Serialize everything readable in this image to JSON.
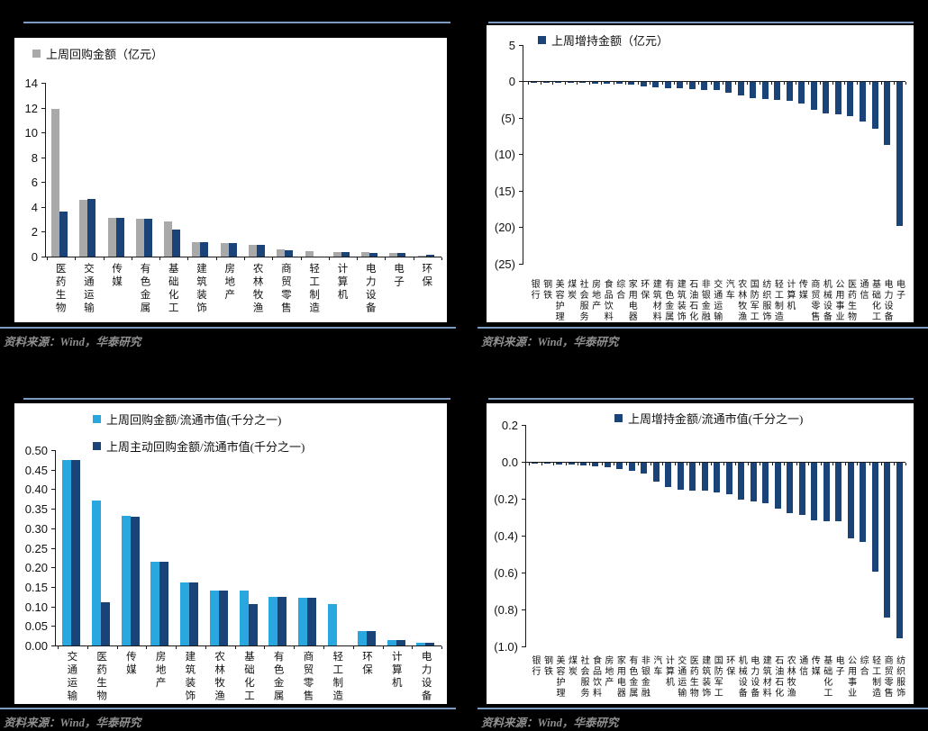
{
  "colors": {
    "page_background": "#000000",
    "panel_background": "#ffffff",
    "divider_line": "#7d9bc1",
    "gray_bar": "#a9a9a9",
    "navy_bar": "#1a4378",
    "light_blue_bar": "#29a8e0",
    "axis_color": "#1a1a1a",
    "source_text": "#8f8f8f"
  },
  "source_note": {
    "text": "资料来源：Wind，华泰研究"
  },
  "chart_data": [
    {
      "id": "weekly-repurchase-amount",
      "type": "bar",
      "legend": [
        {
          "label": "上周回购金额（亿元）",
          "color": "#a9a9a9"
        }
      ],
      "categories": [
        "医药生物",
        "交通运输",
        "传媒",
        "有色金属",
        "基础化工",
        "建筑装饰",
        "房地产",
        "农林牧渔",
        "商贸零售",
        "轻工制造",
        "计算机",
        "电力设备",
        "电子",
        "环保"
      ],
      "series": [
        {
          "color": "#a9a9a9",
          "values": [
            11.9,
            4.6,
            3.15,
            3.05,
            2.85,
            1.15,
            1.1,
            0.95,
            0.55,
            0.45,
            0.33,
            0.35,
            0.27,
            0.1
          ]
        },
        {
          "color": "#1a4378",
          "values": [
            3.6,
            4.65,
            3.13,
            3.05,
            2.15,
            1.15,
            1.1,
            0.95,
            0.53,
            0,
            0.37,
            0.3,
            0.29,
            0.13
          ]
        }
      ],
      "y_ticks": {
        "labels": [
          "14",
          "12",
          "10",
          "8",
          "6",
          "4",
          "2",
          "0"
        ],
        "values": [
          14,
          12,
          10,
          8,
          6,
          4,
          2,
          0
        ]
      },
      "ylim": [
        0,
        14
      ],
      "grid": false,
      "legend_position": "top-left"
    },
    {
      "id": "weekly-holding-increase-amount",
      "type": "bar",
      "legend": [
        {
          "label": "上周增持金额（亿元）",
          "color": "#1a4378"
        }
      ],
      "categories": [
        "银行",
        "钢铁",
        "美容护理",
        "煤炭",
        "社会服务",
        "房地产",
        "食品饮料",
        "综合",
        "家用电器",
        "环保",
        "建筑材料",
        "有色金属",
        "建筑装饰",
        "石油石化",
        "非银金融",
        "交通运输",
        "汽车",
        "农林牧渔",
        "国防军工",
        "纺织服饰",
        "轻工制造",
        "计算机",
        "传媒",
        "商贸零售",
        "机械设备",
        "公用事业",
        "医药生物",
        "通信",
        "基础化工",
        "电力设备",
        "电子"
      ],
      "series": [
        {
          "color": "#1a4378",
          "values": [
            -0.05,
            -0.07,
            -0.1,
            -0.1,
            -0.15,
            -0.2,
            -0.25,
            -0.3,
            -0.4,
            -0.6,
            -0.75,
            -0.9,
            -0.9,
            -1.0,
            -1.1,
            -1.15,
            -1.5,
            -1.8,
            -2.2,
            -2.3,
            -2.45,
            -2.6,
            -2.9,
            -3.8,
            -4.3,
            -4.5,
            -4.7,
            -5.4,
            -6.4,
            -8.6,
            -19.8
          ]
        }
      ],
      "y_ticks": {
        "labels": [
          "5",
          "0",
          "(5)",
          "(10)",
          "(15)",
          "(20)",
          "(25)"
        ],
        "values": [
          5,
          0,
          -5,
          -10,
          -15,
          -20,
          -25
        ]
      },
      "ylim": [
        -25,
        5
      ],
      "grid": false,
      "legend_position": "top-center-left"
    },
    {
      "id": "weekly-repurchase-to-float-cap",
      "type": "bar",
      "legend": [
        {
          "label": "上周回购金额/流通市值(千分之一)",
          "color": "#29a8e0"
        },
        {
          "label": "上周主动回购金额/流通市值(千分之一)",
          "color": "#1a4378"
        }
      ],
      "categories": [
        "交通运输",
        "医药生物",
        "传媒",
        "房地产",
        "建筑装饰",
        "农林牧渔",
        "基础化工",
        "有色金属",
        "商贸零售",
        "轻工制造",
        "环保",
        "计算机",
        "电力设备"
      ],
      "series": [
        {
          "color": "#29a8e0",
          "values": [
            0.475,
            0.371,
            0.331,
            0.215,
            0.162,
            0.141,
            0.14,
            0.125,
            0.122,
            0.106,
            0.038,
            0.015,
            0.008
          ]
        },
        {
          "color": "#1a4378",
          "values": [
            0.474,
            0.111,
            0.329,
            0.215,
            0.162,
            0.141,
            0.107,
            0.125,
            0.122,
            0,
            0.038,
            0.015,
            0.007
          ]
        }
      ],
      "y_ticks": {
        "labels": [
          "0.50",
          "0.45",
          "0.40",
          "0.35",
          "0.30",
          "0.25",
          "0.20",
          "0.15",
          "0.10",
          "0.05",
          "0.00"
        ],
        "values": [
          0.5,
          0.45,
          0.4,
          0.35,
          0.3,
          0.25,
          0.2,
          0.15,
          0.1,
          0.05,
          0
        ]
      },
      "ylim": [
        0,
        0.5
      ],
      "grid": false,
      "legend_position": "top-center-left"
    },
    {
      "id": "weekly-holding-increase-to-float-cap",
      "type": "bar",
      "legend": [
        {
          "label": "上周增持金额/流通市值(千分之一)",
          "color": "#1a4378"
        }
      ],
      "categories": [
        "银行",
        "钢铁",
        "美容护理",
        "煤炭",
        "社会服务",
        "食品饮料",
        "房地产",
        "家用电器",
        "有色金属",
        "非银金融",
        "汽车",
        "计算机",
        "交通运输",
        "医药生物",
        "建筑装饰",
        "国防军工",
        "环保",
        "机械设备",
        "电力设备",
        "建筑材料",
        "石油石化",
        "农林牧渔",
        "通信",
        "传媒",
        "基础化工",
        "电子",
        "公用事业",
        "综合",
        "轻工制造",
        "商贸零售",
        "纺织服饰"
      ],
      "series": [
        {
          "color": "#1a4378",
          "values": [
            -0.005,
            -0.005,
            -0.01,
            -0.01,
            -0.015,
            -0.02,
            -0.025,
            -0.035,
            -0.045,
            -0.06,
            -0.1,
            -0.13,
            -0.145,
            -0.15,
            -0.15,
            -0.16,
            -0.17,
            -0.2,
            -0.21,
            -0.22,
            -0.25,
            -0.275,
            -0.285,
            -0.31,
            -0.315,
            -0.315,
            -0.41,
            -0.43,
            -0.59,
            -0.84,
            -0.95
          ]
        }
      ],
      "y_ticks": {
        "labels": [
          "0.2",
          "0.0",
          "(0.2)",
          "(0.4)",
          "(0.6)",
          "(0.8)",
          "(1.0)"
        ],
        "values": [
          0.2,
          0,
          -0.2,
          -0.4,
          -0.6,
          -0.8,
          -1.0
        ]
      },
      "ylim": [
        -1.0,
        0.2
      ],
      "grid": false,
      "legend_position": "top-center"
    }
  ]
}
